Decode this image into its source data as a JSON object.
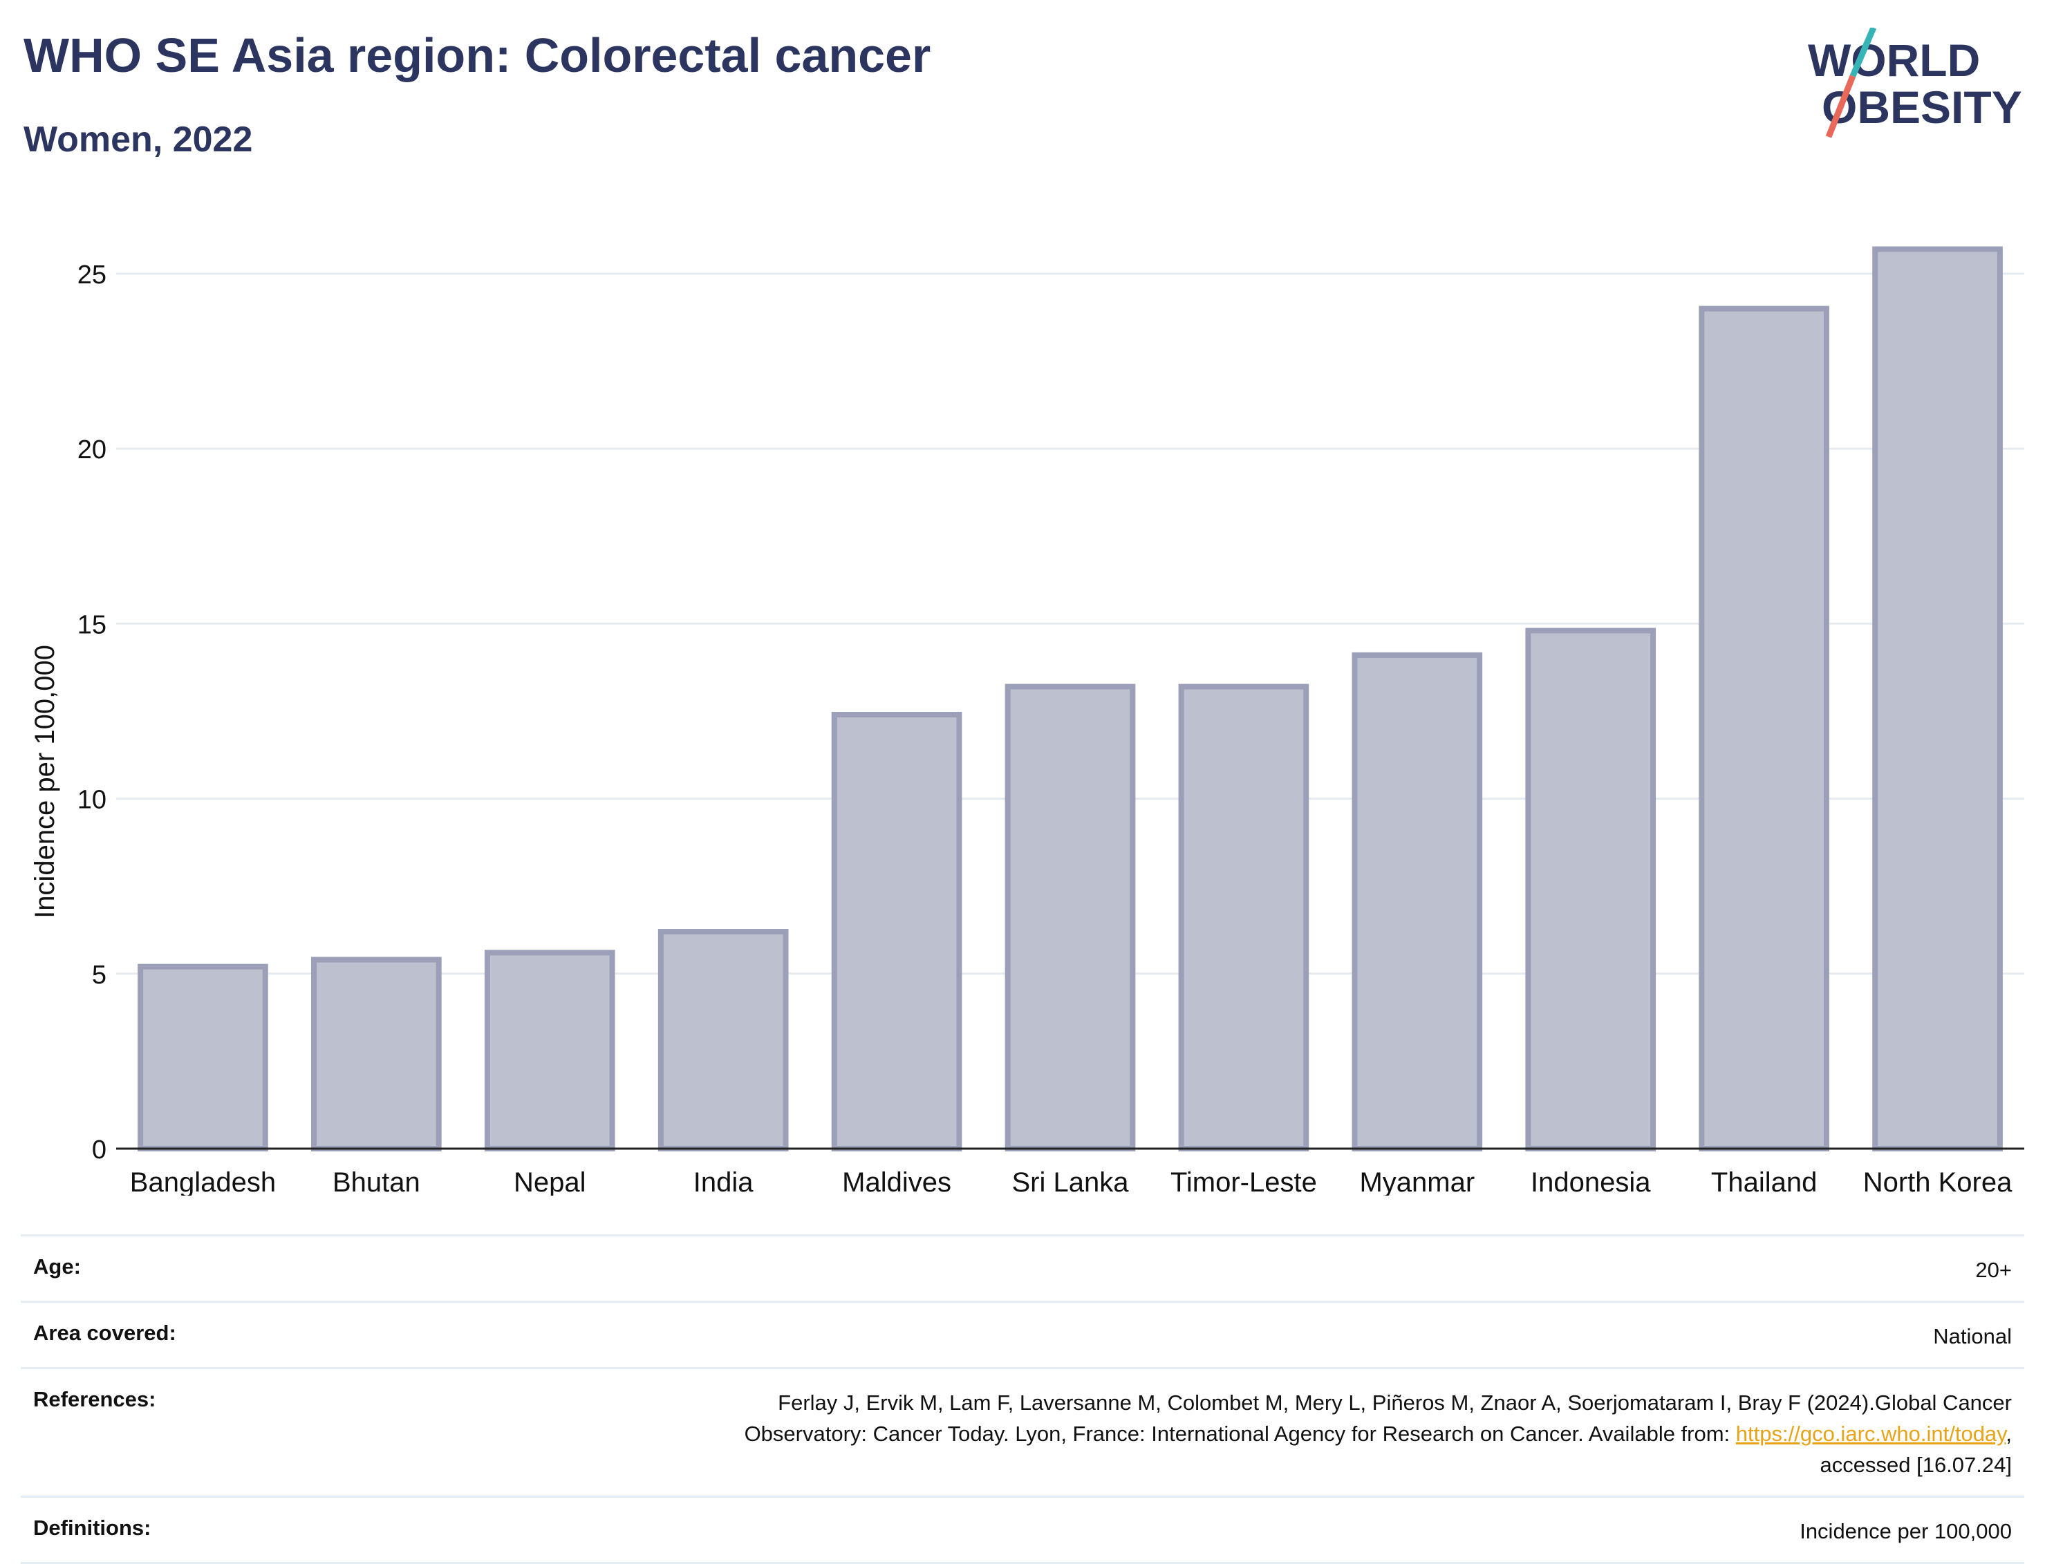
{
  "header": {
    "title": "WHO SE Asia region: Colorectal cancer",
    "subtitle": "Women, 2022"
  },
  "logo": {
    "line1": "WORLD",
    "line2": "OBESITY",
    "slash_colors": [
      "#37b5b6",
      "#e8685a"
    ],
    "text_color": "#2b3560"
  },
  "chart_data": {
    "type": "bar",
    "categories": [
      "Bangladesh",
      "Bhutan",
      "Nepal",
      "India",
      "Maldives",
      "Sri Lanka",
      "Timor-Leste",
      "Myanmar",
      "Indonesia",
      "Thailand",
      "North Korea"
    ],
    "values": [
      5.2,
      5.4,
      5.6,
      6.2,
      12.4,
      13.2,
      13.2,
      14.1,
      14.8,
      24.0,
      25.7
    ],
    "ylabel": "Incidence per 100,000",
    "ylim": [
      0,
      26.5
    ],
    "yticks": [
      0,
      5,
      10,
      15,
      20,
      25
    ],
    "grid": true,
    "bar_fill": "#bdc0ce",
    "bar_stroke": "#9ba0b8"
  },
  "info": {
    "age_label": "Age:",
    "age_value": "20+",
    "area_label": "Area covered:",
    "area_value": "National",
    "references_label": "References:",
    "references_line1": "Ferlay J, Ervik M, Lam F, Laversanne M, Colombet M, Mery L, Piñeros M, Znaor A, Soerjomataram I, Bray F (2024).Global Cancer",
    "references_line2": "Observatory: Cancer Today. Lyon, France: International Agency for Research on Cancer. Available from: ",
    "references_link": "https://gco.iarc.who.int/today",
    "references_line3": "accessed [16.07.24]",
    "definitions_label": "Definitions:",
    "definitions_value": "Incidence per 100,000"
  }
}
